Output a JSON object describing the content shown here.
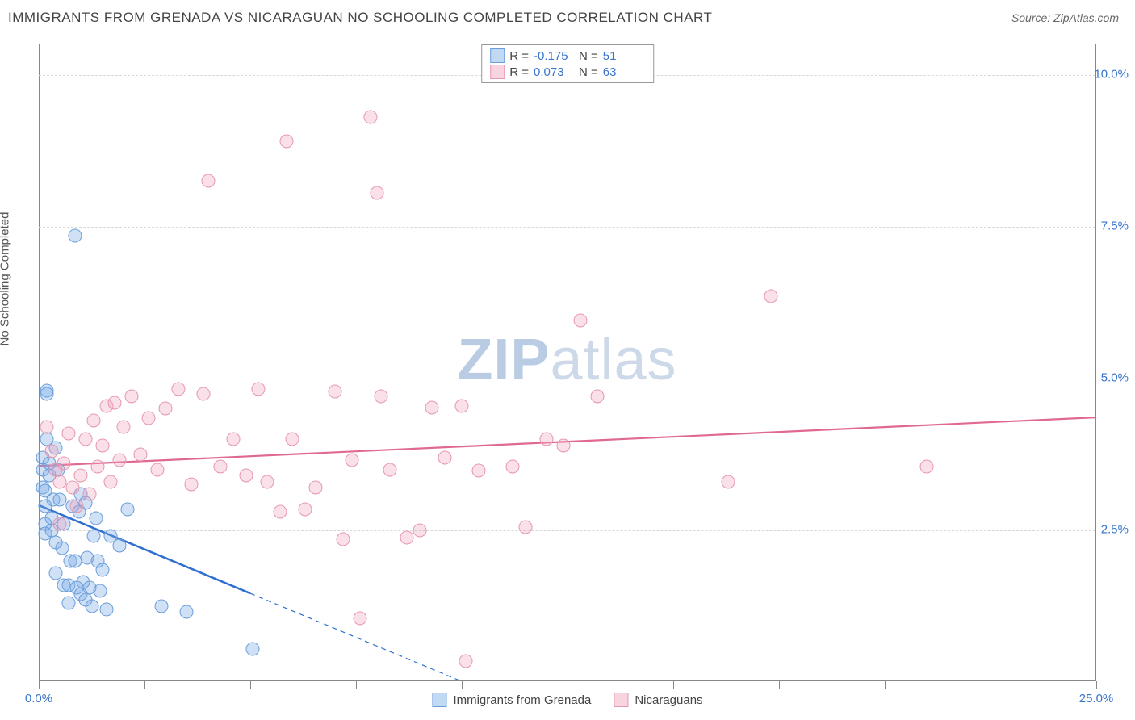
{
  "title": "IMMIGRANTS FROM GRENADA VS NICARAGUAN NO SCHOOLING COMPLETED CORRELATION CHART",
  "source": "Source: ZipAtlas.com",
  "ylabel": "No Schooling Completed",
  "watermark_a": "ZIP",
  "watermark_b": "atlas",
  "chart": {
    "type": "scatter",
    "xlim": [
      0,
      25
    ],
    "ylim": [
      0,
      10.5
    ],
    "xtick_positions": [
      0,
      2.5,
      5.0,
      7.5,
      10.0,
      12.5,
      15.0,
      17.5,
      20.0,
      22.5,
      25.0
    ],
    "xtick_labels": {
      "0": "0.0%",
      "25": "25.0%"
    },
    "ytick_positions": [
      2.5,
      5.0,
      7.5,
      10.0
    ],
    "ytick_labels": [
      "2.5%",
      "5.0%",
      "7.5%",
      "10.0%"
    ],
    "background_color": "#ffffff",
    "grid_color": "#d8d8d8",
    "axis_color": "#888888",
    "label_fontsize": 15,
    "tick_label_color": "#3874cb",
    "marker_radius": 8.5,
    "series": [
      {
        "name": "Immigrants from Grenada",
        "color_fill": "rgba(120,170,230,0.35)",
        "color_stroke": "#6a9edb",
        "r": -0.175,
        "n": 51,
        "trend": {
          "x1": 0,
          "y1": 2.9,
          "x2": 5.0,
          "y2": 1.45,
          "color": "#2e6fd1",
          "width": 2.5,
          "dash_extend_to_x": 11.0
        },
        "points": [
          [
            0.1,
            3.7
          ],
          [
            0.1,
            3.5
          ],
          [
            0.1,
            3.2
          ],
          [
            0.15,
            3.15
          ],
          [
            0.15,
            2.9
          ],
          [
            0.15,
            2.6
          ],
          [
            0.15,
            2.45
          ],
          [
            0.2,
            4.8
          ],
          [
            0.2,
            4.75
          ],
          [
            0.2,
            4.0
          ],
          [
            0.25,
            3.6
          ],
          [
            0.25,
            3.4
          ],
          [
            0.3,
            2.7
          ],
          [
            0.3,
            2.5
          ],
          [
            0.35,
            3.0
          ],
          [
            0.4,
            2.3
          ],
          [
            0.4,
            1.8
          ],
          [
            0.45,
            3.5
          ],
          [
            0.5,
            3.0
          ],
          [
            0.55,
            2.2
          ],
          [
            0.6,
            2.6
          ],
          [
            0.6,
            1.6
          ],
          [
            0.7,
            1.6
          ],
          [
            0.7,
            1.3
          ],
          [
            0.75,
            2.0
          ],
          [
            0.8,
            2.9
          ],
          [
            0.85,
            2.0
          ],
          [
            0.9,
            1.55
          ],
          [
            0.95,
            2.8
          ],
          [
            1.0,
            1.45
          ],
          [
            1.0,
            3.1
          ],
          [
            1.05,
            1.65
          ],
          [
            1.1,
            2.95
          ],
          [
            1.1,
            1.35
          ],
          [
            1.15,
            2.05
          ],
          [
            1.2,
            1.55
          ],
          [
            1.25,
            1.25
          ],
          [
            1.3,
            2.4
          ],
          [
            1.35,
            2.7
          ],
          [
            1.4,
            2.0
          ],
          [
            1.45,
            1.5
          ],
          [
            1.5,
            1.85
          ],
          [
            1.6,
            1.2
          ],
          [
            1.7,
            2.4
          ],
          [
            1.9,
            2.25
          ],
          [
            2.1,
            2.85
          ],
          [
            2.9,
            1.25
          ],
          [
            3.5,
            1.15
          ],
          [
            5.05,
            0.55
          ],
          [
            0.85,
            7.35
          ],
          [
            0.4,
            3.85
          ]
        ]
      },
      {
        "name": "Nicaraguans",
        "color_fill": "rgba(240,160,185,0.32)",
        "color_stroke": "#e797b0",
        "r": 0.073,
        "n": 63,
        "trend": {
          "x1": 0,
          "y1": 3.55,
          "x2": 25,
          "y2": 4.35,
          "color": "#e06a8f",
          "width": 2.2
        },
        "points": [
          [
            0.2,
            4.2
          ],
          [
            0.3,
            3.8
          ],
          [
            0.4,
            3.5
          ],
          [
            0.5,
            3.3
          ],
          [
            0.5,
            2.6
          ],
          [
            0.6,
            3.6
          ],
          [
            0.7,
            4.1
          ],
          [
            0.8,
            3.2
          ],
          [
            0.9,
            2.9
          ],
          [
            1.0,
            3.4
          ],
          [
            1.1,
            4.0
          ],
          [
            1.2,
            3.1
          ],
          [
            1.3,
            4.3
          ],
          [
            1.4,
            3.55
          ],
          [
            1.5,
            3.9
          ],
          [
            1.6,
            4.55
          ],
          [
            1.7,
            3.3
          ],
          [
            1.8,
            4.6
          ],
          [
            1.9,
            3.65
          ],
          [
            2.0,
            4.2
          ],
          [
            2.2,
            4.7
          ],
          [
            2.4,
            3.75
          ],
          [
            2.6,
            4.35
          ],
          [
            2.8,
            3.5
          ],
          [
            3.0,
            4.5
          ],
          [
            3.3,
            4.82
          ],
          [
            3.6,
            3.25
          ],
          [
            3.9,
            4.75
          ],
          [
            4.0,
            8.25
          ],
          [
            4.3,
            3.55
          ],
          [
            4.6,
            4.0
          ],
          [
            4.9,
            3.4
          ],
          [
            5.2,
            4.82
          ],
          [
            5.4,
            3.3
          ],
          [
            5.7,
            2.8
          ],
          [
            5.85,
            8.9
          ],
          [
            6.0,
            4.0
          ],
          [
            6.3,
            2.85
          ],
          [
            6.55,
            3.2
          ],
          [
            7.0,
            4.78
          ],
          [
            7.2,
            2.35
          ],
          [
            7.4,
            3.65
          ],
          [
            7.6,
            1.05
          ],
          [
            7.85,
            9.3
          ],
          [
            8.0,
            8.05
          ],
          [
            8.1,
            4.7
          ],
          [
            8.3,
            3.5
          ],
          [
            8.7,
            2.38
          ],
          [
            9.0,
            2.5
          ],
          [
            9.3,
            4.52
          ],
          [
            9.6,
            3.7
          ],
          [
            10.0,
            4.55
          ],
          [
            10.1,
            0.35
          ],
          [
            10.4,
            3.48
          ],
          [
            11.2,
            3.55
          ],
          [
            11.5,
            2.55
          ],
          [
            12.0,
            4.0
          ],
          [
            12.4,
            3.9
          ],
          [
            12.8,
            5.95
          ],
          [
            13.2,
            4.7
          ],
          [
            16.3,
            3.3
          ],
          [
            17.3,
            6.35
          ],
          [
            21.0,
            3.55
          ]
        ]
      }
    ]
  },
  "legend_top": [
    {
      "swatch": "blue",
      "r_label": "R =",
      "r": "-0.175",
      "n_label": "N =",
      "n": "51"
    },
    {
      "swatch": "pink",
      "r_label": "R =",
      "r": "0.073",
      "n_label": "N =",
      "n": "63"
    }
  ],
  "legend_bottom": [
    {
      "swatch": "blue",
      "label": "Immigrants from Grenada"
    },
    {
      "swatch": "pink",
      "label": "Nicaraguans"
    }
  ]
}
